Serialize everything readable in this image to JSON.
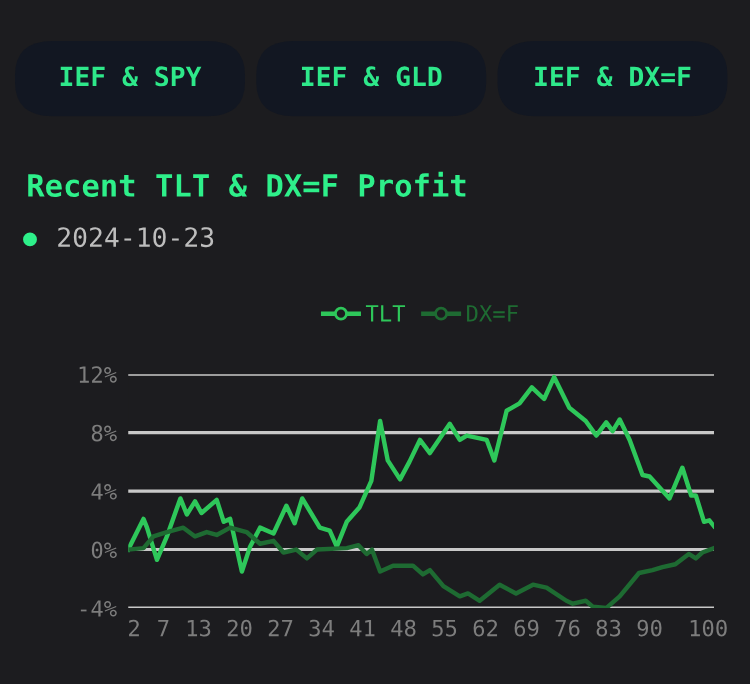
{
  "chart_data": {
    "type": "line",
    "title": "Recent TLT & DX=F Profit",
    "subtitle": "2024-10-23",
    "annotations": [
      "IEF & SPY",
      "IEF & GLD",
      "IEF & DX=F"
    ],
    "series": [
      {
        "name": "TLT",
        "color": "#2ec75a",
        "x": [
          1,
          3.6,
          4.2,
          5.9,
          7.6,
          9.9,
          11,
          12.4,
          13.5,
          16.1,
          17.3,
          18.4,
          20.4,
          21.8,
          23.5,
          25.8,
          28,
          29.4,
          30.7,
          33.7,
          35.4,
          36.6,
          38.3,
          40.5,
          42.5,
          44,
          45.3,
          47.4,
          49,
          50.8,
          52.5,
          55.9,
          57.6,
          58.8,
          62.2,
          63.5,
          65.6,
          67.8,
          69.9,
          72,
          73.7,
          76.3,
          79.1,
          80.9,
          82.6,
          83.7,
          84.9,
          86.6,
          88.8,
          90,
          93.4,
          95.6,
          97.1,
          97.9,
          99.3,
          100.2,
          101
        ],
        "values": [
          0,
          2.1,
          1.5,
          -0.7,
          0.9,
          3.5,
          2.4,
          3.3,
          2.5,
          3.4,
          1.9,
          2.1,
          -1.5,
          0.2,
          1.5,
          1.1,
          3,
          1.8,
          3.5,
          1.5,
          1.3,
          0.2,
          1.9,
          2.9,
          4.7,
          8.8,
          6.1,
          4.8,
          6,
          7.5,
          6.6,
          8.6,
          7.5,
          7.8,
          7.5,
          6.1,
          9.5,
          10,
          11.1,
          10.3,
          11.8,
          9.7,
          8.8,
          7.8,
          8.7,
          8.1,
          8.9,
          7.5,
          5.1,
          5,
          3.5,
          5.6,
          3.7,
          3.7,
          1.9,
          2,
          1.6
        ]
      },
      {
        "name": "DX=F",
        "color": "#1e6b32",
        "x": [
          1,
          3.6,
          5.3,
          7.6,
          10.4,
          12.4,
          14.4,
          16.1,
          18.4,
          21.2,
          23.5,
          25.8,
          27.5,
          29.7,
          31.5,
          33.2,
          38.3,
          40.3,
          41.7,
          42.6,
          44,
          46.2,
          49.6,
          51.3,
          52.5,
          54.8,
          57.6,
          59,
          61,
          64.4,
          67.2,
          70.1,
          72.4,
          75.8,
          76.9,
          79.1,
          80.3,
          82.6,
          84.9,
          88.2,
          90.5,
          92.2,
          94.4,
          96.7,
          97.9,
          99,
          101
        ],
        "values": [
          0,
          0.1,
          0.9,
          1.2,
          1.5,
          0.9,
          1.2,
          1,
          1.5,
          1.2,
          0.4,
          0.6,
          -0.2,
          0,
          -0.6,
          0,
          0.1,
          0.3,
          -0.3,
          0,
          -1.5,
          -1.1,
          -1.1,
          -1.7,
          -1.4,
          -2.5,
          -3.2,
          -3,
          -3.5,
          -2.4,
          -3,
          -2.4,
          -2.6,
          -3.5,
          -3.7,
          -3.5,
          -3.9,
          -4,
          -3.2,
          -1.6,
          -1.4,
          -1.2,
          -1,
          -0.3,
          -0.6,
          -0.2,
          0.1
        ]
      }
    ],
    "xlim": [
      1,
      101
    ],
    "xticks": [
      2,
      7,
      13,
      20,
      27,
      34,
      41,
      48,
      55,
      62,
      69,
      76,
      83,
      90,
      100
    ],
    "ylim": [
      -4,
      12
    ],
    "yticks": [
      {
        "value": -4,
        "label": "-4%"
      },
      {
        "value": 0,
        "label": "0%"
      },
      {
        "value": 4,
        "label": "4%"
      },
      {
        "value": 8,
        "label": "8%"
      },
      {
        "value": 12,
        "label": "12%"
      }
    ],
    "grid": "y",
    "legend": "top",
    "line_style": "solid"
  }
}
